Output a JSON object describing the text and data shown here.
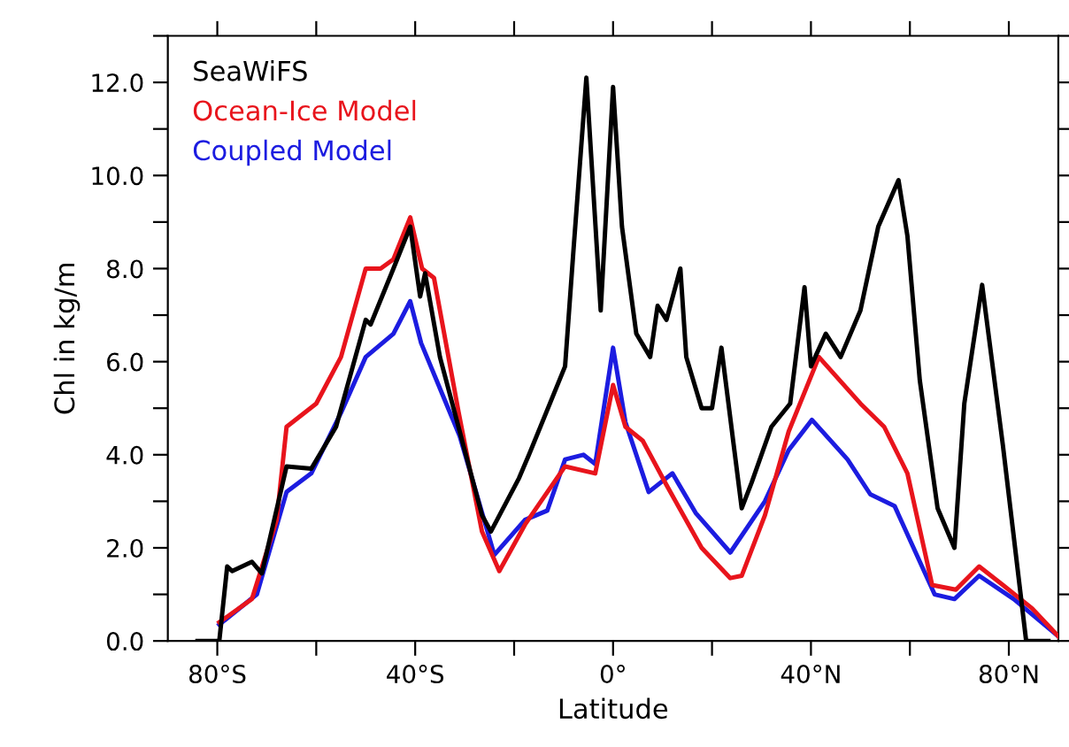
{
  "chart_data": {
    "type": "line",
    "xlabel": "Latitude",
    "ylabel": "Chl in kg/m",
    "xlim": [
      -90,
      90
    ],
    "ylim": [
      0,
      13
    ],
    "xticks": [
      {
        "value": -80,
        "label": "80°S"
      },
      {
        "value": -60,
        "label": null
      },
      {
        "value": -40,
        "label": "40°S"
      },
      {
        "value": -20,
        "label": null
      },
      {
        "value": 0,
        "label": "0°"
      },
      {
        "value": 20,
        "label": null
      },
      {
        "value": 40,
        "label": "40°N"
      },
      {
        "value": 60,
        "label": null
      },
      {
        "value": 80,
        "label": "80°N"
      }
    ],
    "yticks": [
      {
        "value": 0,
        "label": "0.0"
      },
      {
        "value": 1,
        "label": null
      },
      {
        "value": 2,
        "label": "2.0"
      },
      {
        "value": 3,
        "label": null
      },
      {
        "value": 4,
        "label": "4.0"
      },
      {
        "value": 5,
        "label": null
      },
      {
        "value": 6,
        "label": "6.0"
      },
      {
        "value": 7,
        "label": null
      },
      {
        "value": 8,
        "label": "8.0"
      },
      {
        "value": 9,
        "label": null
      },
      {
        "value": 10,
        "label": "10.0"
      },
      {
        "value": 11,
        "label": null
      },
      {
        "value": 12,
        "label": "12.0"
      },
      {
        "value": 13,
        "label": null
      }
    ],
    "grid": false,
    "legend": "top left",
    "marker": "none",
    "line_style": "solid",
    "series": [
      {
        "name": "SeaWiFS",
        "color": "#000000",
        "x": [
          -84,
          -79.6,
          -78,
          -77,
          -73,
          -71,
          -66,
          -61,
          -56,
          -50,
          -49,
          -44.4,
          -41,
          -39,
          -38,
          -35,
          -26.5,
          -24.7,
          -19,
          -17.8,
          -17,
          -9.7,
          -8,
          -5.4,
          -2.5,
          0,
          1.8,
          4.7,
          7.5,
          9,
          10.8,
          13.6,
          14.8,
          17.9,
          20,
          21.9,
          26,
          28,
          32,
          35.8,
          38.7,
          40,
          43,
          46,
          50,
          53.6,
          57.7,
          59.5,
          62,
          65.6,
          69,
          71,
          74.6,
          78.8,
          83.5,
          88
        ],
        "values": [
          0,
          0,
          1.6,
          1.5,
          1.7,
          1.45,
          3.75,
          3.7,
          4.6,
          6.9,
          6.8,
          8.0,
          8.9,
          7.4,
          7.9,
          6.1,
          2.7,
          2.35,
          3.5,
          3.8,
          4.0,
          5.9,
          8.4,
          12.1,
          7.1,
          11.9,
          8.9,
          6.6,
          6.1,
          7.2,
          6.9,
          8.0,
          6.1,
          5.0,
          5.0,
          6.3,
          2.85,
          3.4,
          4.6,
          5.1,
          7.6,
          5.9,
          6.6,
          6.1,
          7.1,
          8.9,
          9.9,
          8.7,
          5.6,
          2.85,
          2.0,
          5.1,
          7.65,
          4.2,
          0,
          0
        ]
      },
      {
        "name": "Ocean-Ice Model",
        "color": "#e8141c",
        "x": [
          -79.6,
          -73,
          -68,
          -66,
          -60,
          -55,
          -50,
          -47,
          -44.4,
          -41,
          -38.6,
          -36.2,
          -31.2,
          -26.5,
          -23,
          -17.8,
          -9.7,
          -3.6,
          0,
          2.5,
          6,
          10.8,
          17.9,
          23.7,
          26,
          30.7,
          35.5,
          41.6,
          50,
          54.8,
          59.5,
          64.5,
          69.3,
          74,
          78.8,
          84.7,
          90
        ],
        "values": [
          0.4,
          0.9,
          2.6,
          4.6,
          5.1,
          6.1,
          8.0,
          8.0,
          8.2,
          9.1,
          8.0,
          7.8,
          4.9,
          2.35,
          1.5,
          2.5,
          3.75,
          3.6,
          5.5,
          4.6,
          4.3,
          3.35,
          2.0,
          1.35,
          1.4,
          2.7,
          4.5,
          6.1,
          5.1,
          4.6,
          3.6,
          1.2,
          1.1,
          1.6,
          1.2,
          0.7,
          0.1
        ]
      },
      {
        "name": "Coupled Model",
        "color": "#1c1ce0",
        "x": [
          -79.6,
          -72,
          -66,
          -61,
          -55,
          -50,
          -44.4,
          -41,
          -38.8,
          -31,
          -24,
          -17.8,
          -13.3,
          -9.7,
          -6,
          -3.6,
          0,
          2.5,
          7.2,
          12,
          16.7,
          23.7,
          30.7,
          35.5,
          40.2,
          47.4,
          52,
          56.9,
          65,
          69,
          74,
          81,
          90
        ],
        "values": [
          0.35,
          1.0,
          3.2,
          3.6,
          4.9,
          6.1,
          6.6,
          7.3,
          6.4,
          4.4,
          1.85,
          2.6,
          2.8,
          3.9,
          4.0,
          3.8,
          6.3,
          4.7,
          3.2,
          3.6,
          2.75,
          1.9,
          3.0,
          4.1,
          4.75,
          3.9,
          3.15,
          2.9,
          1.0,
          0.9,
          1.4,
          0.9,
          0.1
        ]
      }
    ]
  }
}
